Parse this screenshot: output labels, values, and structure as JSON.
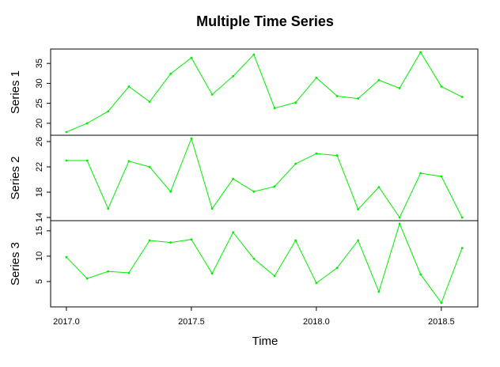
{
  "chart_data": {
    "type": "line",
    "title": "Multiple Time Series",
    "xlabel": "Time",
    "x": [
      2017,
      2017.083,
      2017.167,
      2017.25,
      2017.333,
      2017.417,
      2017.5,
      2017.583,
      2017.667,
      2017.75,
      2017.833,
      2017.917,
      2018,
      2018.083,
      2018.167,
      2018.25,
      2018.333,
      2018.417,
      2018.5,
      2018.583
    ],
    "xlim": [
      2016.937,
      2018.646
    ],
    "xticks": [
      {
        "value": 2017,
        "label": "2017.0"
      },
      2017.5,
      {
        "value": 2018,
        "label": "2018.0"
      },
      2018.5
    ],
    "series": [
      {
        "name": "Series 1",
        "color": "#00ee00",
        "ylim": [
          17.0,
          38.6
        ],
        "yticks": [
          20,
          25,
          30,
          35
        ],
        "values": [
          17.8,
          20.0,
          23.0,
          29.2,
          25.4,
          32.4,
          36.4,
          27.2,
          31.8,
          37.2,
          23.8,
          25.2,
          31.4,
          26.8,
          26.2,
          30.8,
          28.8,
          37.8,
          29.2,
          26.6
        ]
      },
      {
        "name": "Series 2",
        "color": "#00ee00",
        "ylim": [
          13.5,
          27.0
        ],
        "yticks": [
          14,
          18,
          22,
          26
        ],
        "values": [
          23.0,
          23.0,
          15.4,
          22.9,
          22.0,
          18.1,
          26.5,
          15.4,
          20.1,
          18.1,
          18.9,
          22.5,
          24.1,
          23.8,
          15.3,
          18.8,
          14.0,
          21.0,
          20.5,
          14.0
        ]
      },
      {
        "name": "Series 3",
        "color": "#00ee00",
        "ylim": [
          0.0,
          17.0
        ],
        "yticks": [
          5,
          10,
          15
        ],
        "values": [
          9.8,
          5.6,
          7.0,
          6.7,
          13.1,
          12.7,
          13.3,
          6.6,
          14.7,
          9.5,
          6.1,
          13.1,
          4.7,
          7.7,
          13.1,
          3.0,
          16.4,
          6.4,
          0.8,
          11.6
        ]
      }
    ]
  }
}
